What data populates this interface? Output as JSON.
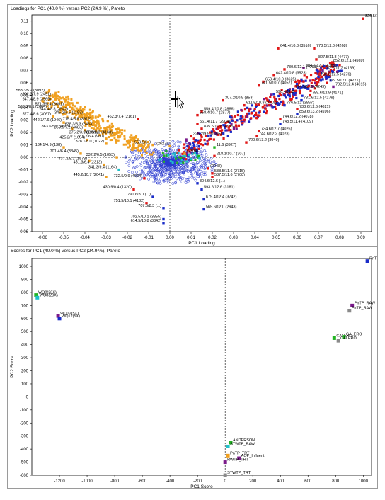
{
  "chart_data": [
    {
      "type": "scatter",
      "title": "Loadings for PC1 (40.0 %) versus PC2 (24.9 %), Pareto",
      "xlabel": "PC1 Loading",
      "ylabel": "PC2 Loading",
      "xlim": [
        -0.065,
        0.095
      ],
      "ylim": [
        -0.06,
        0.115
      ],
      "xticks": [
        -0.06,
        -0.05,
        -0.04,
        -0.03,
        -0.02,
        -0.01,
        0.0,
        0.01,
        0.02,
        0.03,
        0.04,
        0.05,
        0.06,
        0.07,
        0.08,
        0.09
      ],
      "xtick_labels": [
        "-0.06",
        "-0.05",
        "-0.04",
        "-0.03",
        "-0.02",
        "-0.01",
        "0.00",
        "0.01",
        "0.02",
        "0.03",
        "0.04",
        "0.05",
        "0.06",
        "0.07",
        "0.08",
        "0.09"
      ],
      "yticks": [
        -0.06,
        -0.05,
        -0.04,
        -0.03,
        -0.02,
        -0.01,
        0.0,
        0.01,
        0.02,
        0.03,
        0.04,
        0.05,
        0.06,
        0.07,
        0.08,
        0.09,
        0.1,
        0.11
      ],
      "ytick_labels": [
        "-0.06",
        "-0.05",
        "-0.04",
        "-0.03",
        "-0.02",
        "-0.01",
        "0.00",
        "0.01",
        "0.02",
        "0.03",
        "0.04",
        "0.05",
        "0.06",
        "0.07",
        "0.08",
        "0.09",
        "0.10",
        "0.11"
      ],
      "colors": {
        "orange": "#f0a020",
        "red": "#e01818",
        "blue": "#1a2cc8",
        "green": "#22b422",
        "purple": "#7a1a8a",
        "cyan": "#20c0c8",
        "gray": "#8a8a8a",
        "circle": "#2a3ad0"
      },
      "points": [
        {
          "label": "826.5/11.8 (4473)",
          "x": 0.091,
          "y": 0.112,
          "c": "red"
        },
        {
          "label": "641.4/10.8 (3516)",
          "x": 0.051,
          "y": 0.088,
          "c": "red"
        },
        {
          "label": "778.5/12.0 (4268)",
          "x": 0.068,
          "y": 0.088,
          "c": "red"
        },
        {
          "label": "827.5/11.8 (4477)",
          "x": 0.069,
          "y": 0.079,
          "c": "red"
        },
        {
          "label": "852.6/12.1 (4569)",
          "x": 0.076,
          "y": 0.076,
          "c": "red"
        },
        {
          "label": "804.6/12.2 (4385)",
          "x": 0.063,
          "y": 0.072,
          "c": "purple"
        },
        {
          "label": "730.6/12.1 (4001)",
          "x": 0.054,
          "y": 0.071,
          "c": "red"
        },
        {
          "label": "753.6/11.7 (4139)",
          "x": 0.072,
          "y": 0.07,
          "c": "purple"
        },
        {
          "label": "642.4/10.8 (3523)",
          "x": 0.049,
          "y": 0.066,
          "c": "red"
        },
        {
          "label": "780.6/12.5 (4276)",
          "x": 0.07,
          "y": 0.065,
          "c": "blue"
        },
        {
          "label": "659.4/10.9 (3625)",
          "x": 0.044,
          "y": 0.061,
          "c": "red"
        },
        {
          "label": "741.5/10.7 (4057)",
          "x": 0.042,
          "y": 0.058,
          "c": "red"
        },
        {
          "label": "779.5/12.0 (4271)",
          "x": 0.074,
          "y": 0.06,
          "c": "red"
        },
        {
          "label": "732.5/12.4 (4015)",
          "x": 0.077,
          "y": 0.057,
          "c": "purple"
        },
        {
          "label": "774.5/11.5 (4249)",
          "x": 0.058,
          "y": 0.055,
          "c": "blue"
        },
        {
          "label": "596.4/11.2",
          "x": 0.049,
          "y": 0.051,
          "c": "blue"
        },
        {
          "label": "759.6/12.9 (4171)",
          "x": 0.066,
          "y": 0.05,
          "c": "red"
        },
        {
          "label": "307.2/10.9 (853)",
          "x": 0.025,
          "y": 0.046,
          "c": "red"
        },
        {
          "label": "781.6/12.5 (4279)",
          "x": 0.062,
          "y": 0.046,
          "c": "blue"
        },
        {
          "label": "611.5/10.8 (3315)",
          "x": 0.035,
          "y": 0.042,
          "c": "red"
        },
        {
          "label": "776.5/12 (3867)",
          "x": 0.054,
          "y": 0.042,
          "c": "blue"
        },
        {
          "label": "733.6/12.6 (4021)",
          "x": 0.06,
          "y": 0.039,
          "c": "red"
        },
        {
          "label": "559.4/10.8 (2886)",
          "x": 0.015,
          "y": 0.037,
          "c": "red"
        },
        {
          "label": "558.4/10.7 (2877)",
          "x": 0.013,
          "y": 0.034,
          "c": "red"
        },
        {
          "label": "859.6/13.2 (4596)",
          "x": 0.06,
          "y": 0.035,
          "c": "blue"
        },
        {
          "label": "744.6/12.2 (4078)",
          "x": 0.052,
          "y": 0.031,
          "c": "red"
        },
        {
          "label": "748.5/11.4 (4109)",
          "x": 0.052,
          "y": 0.027,
          "c": "blue"
        },
        {
          "label": "734.6/12.7 (4026)",
          "x": 0.042,
          "y": 0.021,
          "c": "red"
        },
        {
          "label": "744.6/12.2 (4078)",
          "x": 0.041,
          "y": 0.017,
          "c": "red"
        },
        {
          "label": "720.6/13.2 (3940)",
          "x": 0.036,
          "y": 0.012,
          "c": "red"
        },
        {
          "label": "561.4/11.7 (2904)",
          "x": 0.013,
          "y": 0.027,
          "c": "red"
        },
        {
          "label": "835.5/10.8 (4515)",
          "x": 0.015,
          "y": 0.023,
          "c": "red"
        },
        {
          "label": "325.2/9.9 (1005)",
          "x": 0.01,
          "y": 0.017,
          "c": "red"
        },
        {
          "label": "462.3/7.4 (2161)",
          "x": -0.015,
          "y": 0.031,
          "c": "red"
        },
        {
          "label": "583.3/5.2 (3092)",
          "x": -0.058,
          "y": 0.052,
          "c": "orange"
        },
        {
          "label": "502.3/7.9 (2451)",
          "x": -0.055,
          "y": 0.049,
          "c": "orange"
        },
        {
          "label": "647.4/8.9 (3569)",
          "x": -0.055,
          "y": 0.045,
          "c": "orange"
        },
        {
          "label": "571.3/5.4 (3691)",
          "x": -0.049,
          "y": 0.041,
          "c": "orange"
        },
        {
          "label": "533.3/8.1 (2664)",
          "x": -0.057,
          "y": 0.039,
          "c": "orange"
        },
        {
          "label": "644.4/8.8 (3542)",
          "x": -0.047,
          "y": 0.037,
          "c": "orange"
        },
        {
          "label": "345.2/6.5 (1193)",
          "x": -0.04,
          "y": 0.034,
          "c": "orange"
        },
        {
          "label": "577.4/8.6 (3067)",
          "x": -0.055,
          "y": 0.033,
          "c": "orange"
        },
        {
          "label": "715.4/5.8 (3912)",
          "x": -0.036,
          "y": 0.029,
          "c": "orange"
        },
        {
          "label": "442.3/7.6 (1946)",
          "x": -0.05,
          "y": 0.028,
          "c": "orange"
        },
        {
          "label": "628.3/5.3 (3433)",
          "x": -0.035,
          "y": 0.025,
          "c": "orange"
        },
        {
          "label": "863.6/5.6 (4618)",
          "x": -0.046,
          "y": 0.023,
          "c": "orange"
        },
        {
          "label": "855.6/7.2 (4683)",
          "x": -0.04,
          "y": 0.022,
          "c": "orange"
        },
        {
          "label": "375.2/3.9 (1391)",
          "x": -0.033,
          "y": 0.018,
          "c": "orange"
        },
        {
          "label": "762.5/6.0 (4168)",
          "x": -0.026,
          "y": 0.018,
          "c": "orange"
        },
        {
          "label": "319.2/6.4 (960)",
          "x": -0.03,
          "y": 0.015,
          "c": "orange"
        },
        {
          "label": "425.2/7 (1664)",
          "x": -0.039,
          "y": 0.014,
          "c": "orange"
        },
        {
          "label": "328.1/8.0 (1022)",
          "x": -0.03,
          "y": 0.011,
          "c": "orange"
        },
        {
          "label": "134.1/4.9 (138)",
          "x": -0.05,
          "y": 0.008,
          "c": "orange"
        },
        {
          "label": "701.4/6.4 (3845)",
          "x": -0.042,
          "y": 0.003,
          "c": "orange"
        },
        {
          "label": "437.2/5.1 (1978)",
          "x": -0.038,
          "y": -0.003,
          "c": "orange"
        },
        {
          "label": "481.3/6.4 (2313)",
          "x": -0.031,
          "y": -0.006,
          "c": "orange"
        },
        {
          "label": "445.2/10.7 (2041)",
          "x": -0.03,
          "y": -0.016,
          "c": "orange"
        },
        {
          "label": "341.3/9.4 (1164)",
          "x": -0.024,
          "y": -0.01,
          "c": "cyan"
        },
        {
          "label": "332.2/6.5 (1053)",
          "x": -0.025,
          "y": 0.0,
          "c": "orange"
        },
        {
          "label": "559.5/6.0",
          "x": -0.008,
          "y": 0.01,
          "c": "orange"
        },
        {
          "label": "732.5/9.9 (4004)",
          "x": -0.012,
          "y": -0.017,
          "c": "red"
        },
        {
          "label": "430.9/0.4 (1320)",
          "x": -0.017,
          "y": -0.026,
          "c": "red"
        },
        {
          "label": "790.6/8.0 (...)",
          "x": -0.008,
          "y": -0.032,
          "c": "blue"
        },
        {
          "label": "751.5/10.1 (4132)",
          "x": -0.011,
          "y": -0.037,
          "c": "red"
        },
        {
          "label": "707.5/8.3 (...)",
          "x": -0.003,
          "y": -0.041,
          "c": "blue"
        },
        {
          "label": "702.5/10.1 (3855)",
          "x": -0.003,
          "y": -0.05,
          "c": "blue"
        },
        {
          "label": "614.5/10.8 (3342)",
          "x": -0.003,
          "y": -0.053,
          "c": "blue"
        },
        {
          "label": "679.4/12.4 (3742)",
          "x": 0.016,
          "y": -0.034,
          "c": "blue"
        },
        {
          "label": "593.6/12.6 (3181)",
          "x": 0.015,
          "y": -0.026,
          "c": "blue"
        },
        {
          "label": "304.6/12.6 (...)",
          "x": 0.013,
          "y": -0.021,
          "c": "blue"
        },
        {
          "label": "565.6/12.0 (2943)",
          "x": 0.016,
          "y": -0.042,
          "c": "blue"
        },
        {
          "label": "538.5/11.6 (2715)",
          "x": 0.02,
          "y": -0.013,
          "c": "red"
        },
        {
          "label": "537.5/11.6 (2708)",
          "x": 0.02,
          "y": -0.016,
          "c": "red"
        },
        {
          "label": "218.1/10.7 (307)",
          "x": 0.021,
          "y": 0.001,
          "c": "red"
        },
        {
          "label": "11.6 (3927)",
          "x": 0.021,
          "y": 0.008,
          "c": "green"
        },
        {
          "label": "(2248)",
          "x": 0.018,
          "y": -0.009,
          "c": "red"
        },
        {
          "label": "(2627)",
          "x": 0.0,
          "y": 0.009,
          "c": "orange"
        },
        {
          "label": "(2304)",
          "x": 0.007,
          "y": 0.003,
          "c": "orange"
        }
      ]
    },
    {
      "type": "scatter",
      "title": "Scores for PC1 (40.0 %) versus PC2 (24.9 %), Pareto",
      "xlabel": "PC1 Score",
      "ylabel": "PC2 Score",
      "xlim": [
        -1400,
        1060
      ],
      "ylim": [
        -600,
        1060
      ],
      "xticks": [
        -1200,
        -1000,
        -800,
        -600,
        -400,
        -200,
        0,
        200,
        400,
        600,
        800,
        1000
      ],
      "xtick_labels": [
        "-1200",
        "-1000",
        "-800",
        "-600",
        "-400",
        "-200",
        "0",
        "200",
        "400",
        "600",
        "800",
        "1000"
      ],
      "yticks": [
        -600,
        -500,
        -400,
        -300,
        -200,
        -100,
        0,
        100,
        200,
        300,
        400,
        500,
        600,
        700,
        800,
        900,
        1000
      ],
      "ytick_labels": [
        "-600",
        "-500",
        "-400",
        "-300",
        "-200",
        "-100",
        "0",
        "100",
        "200",
        "300",
        "400",
        "500",
        "600",
        "700",
        "800",
        "900",
        "1000"
      ],
      "colors": {
        "blue": "#1a2cc8",
        "green": "#22b422",
        "purple": "#7a1a8a",
        "cyan": "#20c0c8",
        "gray": "#8a8a8a",
        "red": "#e01818",
        "orange": "#f0a020"
      },
      "points": [
        {
          "label": "PnTP_RAW",
          "x": 1030,
          "y": 1040,
          "c": "blue"
        },
        {
          "label": "WQ8(20X)",
          "x": -1370,
          "y": 780,
          "c": "green"
        },
        {
          "label": "WQ8(20X)",
          "x": -1360,
          "y": 760,
          "c": "cyan"
        },
        {
          "label": "WQ12(5X)",
          "x": -1210,
          "y": 620,
          "c": "purple"
        },
        {
          "label": "WQ12(5X)",
          "x": -1200,
          "y": 600,
          "c": "blue"
        },
        {
          "label": "PnTP_RAW",
          "x": 920,
          "y": 700,
          "c": "purple"
        },
        {
          "label": "PnTP_RAW",
          "x": 900,
          "y": 660,
          "c": "gray"
        },
        {
          "label": "CALERO",
          "x": 790,
          "y": 450,
          "c": "green"
        },
        {
          "label": "CALERO",
          "x": 860,
          "y": 460,
          "c": "green"
        },
        {
          "label": "CALERO",
          "x": 820,
          "y": 430,
          "c": "gray"
        },
        {
          "label": "ANDERSON",
          "x": 40,
          "y": -350,
          "c": "green"
        },
        {
          "label": "STWTP_RAW",
          "x": 20,
          "y": -380,
          "c": "cyan"
        },
        {
          "label": "PnTP_TRT",
          "x": 20,
          "y": -450,
          "c": "orange"
        },
        {
          "label": "AOP_Influent",
          "x": 100,
          "y": -470,
          "c": "purple"
        },
        {
          "label": "RWTP_TRT",
          "x": 0,
          "y": -500,
          "c": "purple"
        },
        {
          "label": "STWTP_TRT",
          "x": 0,
          "y": -600,
          "c": "gray"
        }
      ]
    }
  ]
}
